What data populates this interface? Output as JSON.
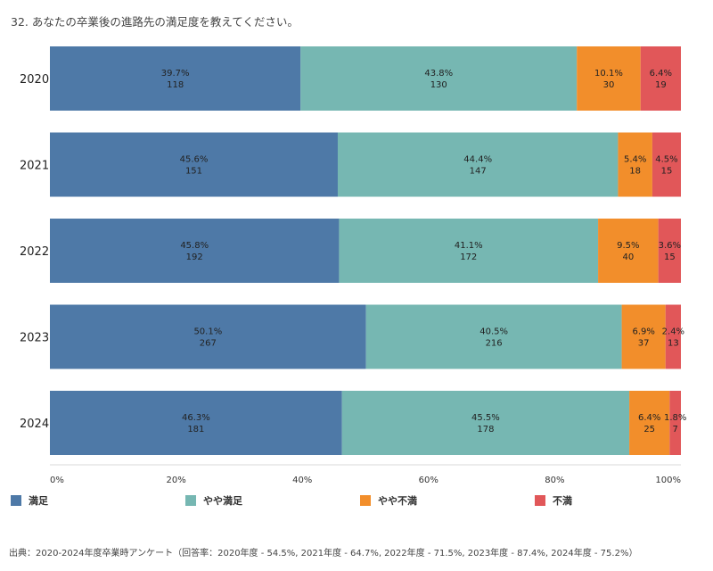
{
  "title": "32. あなたの卒業後の進路先の満足度を教えてください。",
  "source_note": "出典：2020-2024年度卒業時アンケート（回答率：2020年度 - 54.5%, 2021年度 - 64.7%, 2022年度 - 71.5%, 2023年度 - 87.4%, 2024年度 - 75.2%）",
  "chart_data": {
    "type": "bar",
    "orientation": "horizontal",
    "stacked": true,
    "normalized": true,
    "categories": [
      "2020",
      "2021",
      "2022",
      "2023",
      "2024"
    ],
    "series": [
      {
        "name": "満足",
        "color": "#4e79a7",
        "percent_labels": [
          "39.7%",
          "45.6%",
          "45.8%",
          "50.1%",
          "46.3%"
        ],
        "values": [
          118,
          151,
          192,
          267,
          181
        ]
      },
      {
        "name": "やや満足",
        "color": "#76b7b2",
        "percent_labels": [
          "43.8%",
          "44.4%",
          "41.1%",
          "40.5%",
          "45.5%"
        ],
        "values": [
          130,
          147,
          172,
          216,
          178
        ]
      },
      {
        "name": "やや不満",
        "color": "#f28e2b",
        "percent_labels": [
          "10.1%",
          "5.4%",
          "9.5%",
          "6.9%",
          "6.4%"
        ],
        "values": [
          30,
          18,
          40,
          37,
          25
        ]
      },
      {
        "name": "不満",
        "color": "#e15759",
        "percent_labels": [
          "6.4%",
          "4.5%",
          "3.6%",
          "2.4%",
          "1.8%"
        ],
        "values": [
          19,
          15,
          15,
          13,
          7
        ]
      }
    ],
    "x_ticks": [
      "0%",
      "20%",
      "40%",
      "60%",
      "80%",
      "100%"
    ],
    "xlim": [
      0,
      100
    ],
    "grid": false,
    "legend_position": "bottom"
  }
}
